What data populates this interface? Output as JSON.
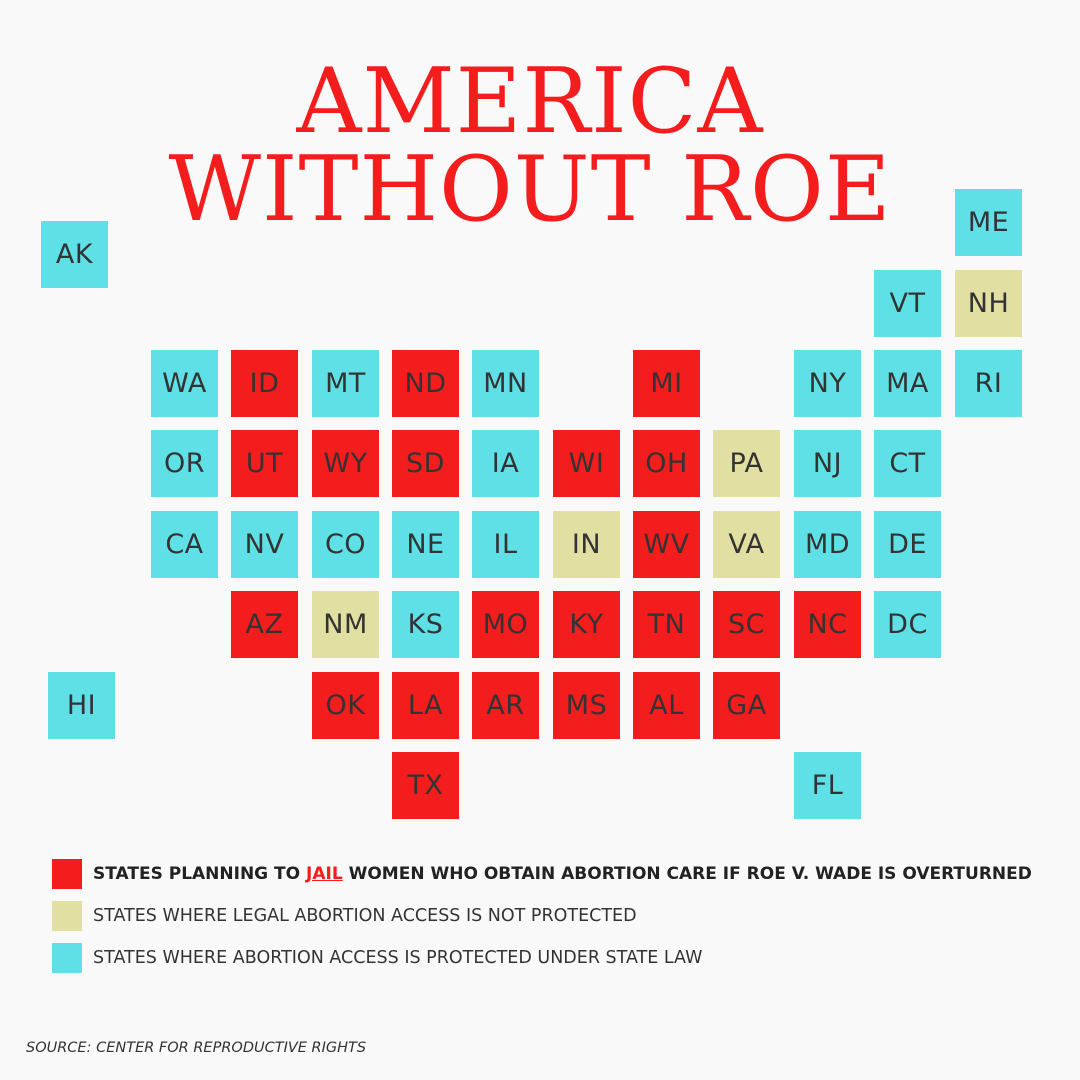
{
  "title": {
    "line1": "AMERICA",
    "line2": "WITHOUT ROE"
  },
  "colors": {
    "jail": "#f41d1d",
    "not_protected": "#e1e0a2",
    "protected": "#5fe0e6",
    "title": "#f41d1d",
    "background": "#f8f9f8"
  },
  "states": [
    {
      "abbr": "AK",
      "status": "protected"
    },
    {
      "abbr": "ME",
      "status": "protected"
    },
    {
      "abbr": "VT",
      "status": "protected"
    },
    {
      "abbr": "NH",
      "status": "not_protected"
    },
    {
      "abbr": "WA",
      "status": "protected"
    },
    {
      "abbr": "ID",
      "status": "jail"
    },
    {
      "abbr": "MT",
      "status": "protected"
    },
    {
      "abbr": "ND",
      "status": "jail"
    },
    {
      "abbr": "MN",
      "status": "protected"
    },
    {
      "abbr": "MI",
      "status": "jail"
    },
    {
      "abbr": "NY",
      "status": "protected"
    },
    {
      "abbr": "MA",
      "status": "protected"
    },
    {
      "abbr": "RI",
      "status": "protected"
    },
    {
      "abbr": "OR",
      "status": "protected"
    },
    {
      "abbr": "UT",
      "status": "jail"
    },
    {
      "abbr": "WY",
      "status": "jail"
    },
    {
      "abbr": "SD",
      "status": "jail"
    },
    {
      "abbr": "IA",
      "status": "protected"
    },
    {
      "abbr": "WI",
      "status": "jail"
    },
    {
      "abbr": "OH",
      "status": "jail"
    },
    {
      "abbr": "PA",
      "status": "not_protected"
    },
    {
      "abbr": "NJ",
      "status": "protected"
    },
    {
      "abbr": "CT",
      "status": "protected"
    },
    {
      "abbr": "CA",
      "status": "protected"
    },
    {
      "abbr": "NV",
      "status": "protected"
    },
    {
      "abbr": "CO",
      "status": "protected"
    },
    {
      "abbr": "NE",
      "status": "protected"
    },
    {
      "abbr": "IL",
      "status": "protected"
    },
    {
      "abbr": "IN",
      "status": "not_protected"
    },
    {
      "abbr": "WV",
      "status": "jail"
    },
    {
      "abbr": "VA",
      "status": "not_protected"
    },
    {
      "abbr": "MD",
      "status": "protected"
    },
    {
      "abbr": "DE",
      "status": "protected"
    },
    {
      "abbr": "AZ",
      "status": "jail"
    },
    {
      "abbr": "NM",
      "status": "not_protected"
    },
    {
      "abbr": "KS",
      "status": "protected"
    },
    {
      "abbr": "MO",
      "status": "jail"
    },
    {
      "abbr": "KY",
      "status": "jail"
    },
    {
      "abbr": "TN",
      "status": "jail"
    },
    {
      "abbr": "SC",
      "status": "jail"
    },
    {
      "abbr": "NC",
      "status": "jail"
    },
    {
      "abbr": "DC",
      "status": "protected"
    },
    {
      "abbr": "HI",
      "status": "protected"
    },
    {
      "abbr": "OK",
      "status": "jail"
    },
    {
      "abbr": "LA",
      "status": "jail"
    },
    {
      "abbr": "AR",
      "status": "jail"
    },
    {
      "abbr": "MS",
      "status": "jail"
    },
    {
      "abbr": "AL",
      "status": "jail"
    },
    {
      "abbr": "GA",
      "status": "jail"
    },
    {
      "abbr": "TX",
      "status": "jail"
    },
    {
      "abbr": "FL",
      "status": "protected"
    }
  ],
  "legend": {
    "jail": {
      "before": "STATES PLANNING TO ",
      "highlight": "JAIL",
      "after": " WOMEN WHO OBTAIN ABORTION CARE IF ROE V. WADE IS OVERTURNED"
    },
    "not_protected": "STATES WHERE LEGAL ABORTION ACCESS IS NOT PROTECTED",
    "protected": "STATES WHERE ABORTION ACCESS IS PROTECTED UNDER STATE LAW"
  },
  "source": "SOURCE: CENTER FOR REPRODUCTIVE RIGHTS"
}
